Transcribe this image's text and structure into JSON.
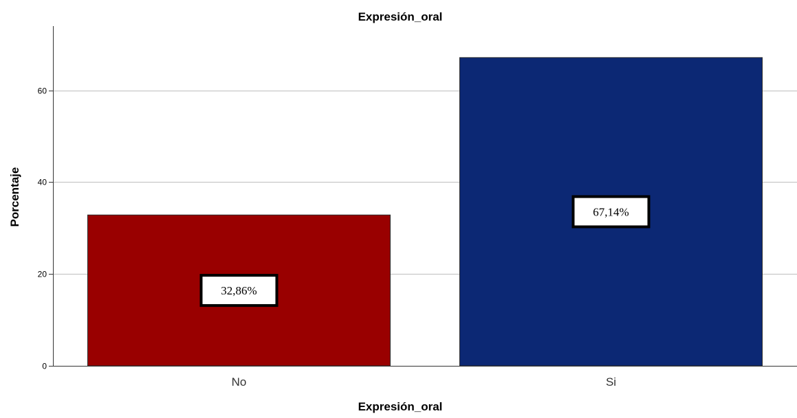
{
  "chart_data": {
    "type": "bar",
    "title": "Expresión_oral",
    "xlabel": "Expresión_oral",
    "ylabel": "Porcentaje",
    "categories": [
      "No",
      "Si"
    ],
    "values": [
      32.86,
      67.14
    ],
    "data_labels": [
      "32,86%",
      "67,14%"
    ],
    "colors": [
      "#990000",
      "#0c2874"
    ],
    "ylim": [
      0,
      74
    ],
    "yticks": [
      0,
      20,
      40,
      60
    ],
    "ytick_labels": [
      "0",
      "20",
      "40",
      "60"
    ],
    "grid": true,
    "legend": "none"
  }
}
